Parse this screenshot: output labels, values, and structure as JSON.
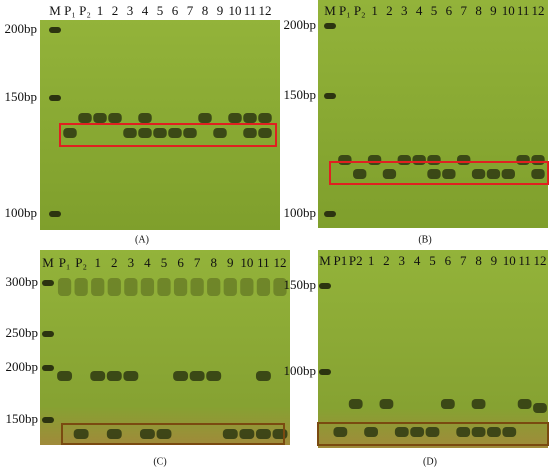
{
  "panels": [
    {
      "caption": "(A)",
      "lanes": [
        "M",
        "P₁",
        "P₂",
        "1",
        "2",
        "3",
        "4",
        "5",
        "6",
        "7",
        "8",
        "9",
        "10",
        "11",
        "12"
      ],
      "sizes": [
        "200bp",
        "150bp",
        "100bp"
      ]
    },
    {
      "caption": "(B)",
      "lanes": [
        "M",
        "P₁",
        "P₂",
        "1",
        "2",
        "3",
        "4",
        "5",
        "6",
        "7",
        "8",
        "9",
        "10",
        "11",
        "12"
      ],
      "sizes": [
        "200bp",
        "150bp",
        "100bp"
      ]
    },
    {
      "caption": "(C)",
      "lanes": [
        "M",
        "P₁",
        "P₂",
        "1",
        "2",
        "3",
        "4",
        "5",
        "6",
        "7",
        "8",
        "9",
        "10",
        "11",
        "12"
      ],
      "sizes": [
        "300bp",
        "250bp",
        "200bp",
        "150bp"
      ]
    },
    {
      "caption": "(D)",
      "lanes": [
        "M",
        "P1",
        "P2",
        "1",
        "2",
        "3",
        "4",
        "5",
        "6",
        "7",
        "8",
        "9",
        "10",
        "11",
        "12"
      ],
      "sizes": [
        "150bp",
        "100bp"
      ]
    }
  ]
}
